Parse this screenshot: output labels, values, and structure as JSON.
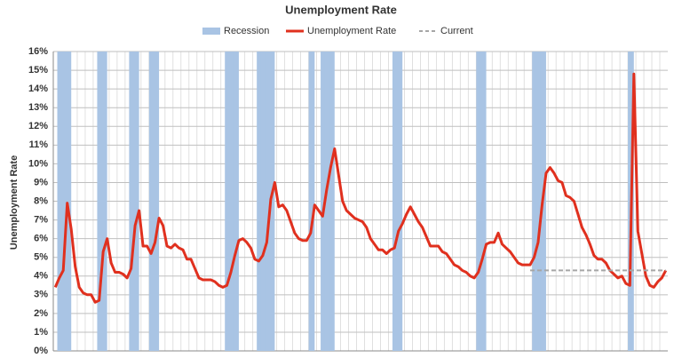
{
  "chart_data": {
    "type": "combo",
    "title": "Unemployment Rate",
    "y_label": "Unemployment Rate",
    "categories": [
      null,
      null,
      null,
      null,
      null,
      null,
      null,
      null,
      null,
      null,
      null,
      null,
      null,
      null,
      null,
      null,
      null,
      null,
      null,
      null,
      null,
      null,
      null,
      null,
      null,
      null,
      null,
      null,
      null,
      null,
      null,
      null,
      null,
      null,
      null,
      null,
      null,
      null,
      null,
      null,
      null,
      null,
      null,
      null,
      null,
      null,
      null,
      null,
      null,
      null,
      null,
      null,
      null,
      null,
      null,
      null,
      null,
      null,
      null,
      null,
      null,
      null,
      null,
      null,
      null,
      null,
      null,
      null,
      null,
      null,
      null,
      null,
      null,
      null,
      null,
      null,
      null,
      null,
      null,
      null,
      null,
      null,
      null,
      null,
      null,
      null,
      null,
      null,
      null,
      null,
      null,
      null,
      null,
      null,
      null,
      null,
      null,
      null,
      null,
      null,
      null,
      null,
      null,
      null,
      null,
      null,
      null,
      null,
      null,
      null,
      null,
      null,
      null,
      null,
      null,
      null,
      null,
      null,
      null,
      null,
      null,
      null,
      null,
      null,
      null,
      null,
      null,
      null,
      null,
      null,
      null,
      null,
      null,
      null,
      null,
      null,
      null,
      null,
      null,
      null,
      null,
      null,
      null,
      null,
      null,
      null,
      null,
      null,
      null,
      null,
      null,
      null,
      null,
      null
    ],
    "series": [
      {
        "name": "Recession",
        "type": "bar",
        "color": "#a9c4e4",
        "values": [
          null,
          16,
          16,
          16,
          null,
          null,
          null,
          null,
          null,
          null,
          null,
          16,
          16,
          null,
          null,
          null,
          null,
          null,
          null,
          16,
          16,
          null,
          null,
          null,
          16,
          16,
          null,
          null,
          null,
          null,
          null,
          null,
          null,
          null,
          null,
          null,
          null,
          null,
          null,
          null,
          null,
          null,
          null,
          16,
          16,
          16,
          null,
          null,
          null,
          null,
          null,
          16,
          16,
          16,
          16,
          null,
          null,
          null,
          null,
          null,
          null,
          null,
          null,
          null,
          16,
          null,
          null,
          16,
          16,
          16,
          null,
          null,
          null,
          null,
          null,
          null,
          null,
          null,
          null,
          null,
          null,
          null,
          null,
          null,
          null,
          16,
          16,
          null,
          null,
          null,
          null,
          null,
          null,
          null,
          null,
          null,
          null,
          null,
          null,
          null,
          null,
          null,
          null,
          null,
          null,
          null,
          16,
          16,
          null,
          null,
          null,
          null,
          null,
          null,
          null,
          null,
          null,
          null,
          null,
          null,
          16,
          16,
          16,
          null,
          null,
          null,
          null,
          null,
          null,
          null,
          null,
          null,
          null,
          null,
          null,
          null,
          null,
          null,
          null,
          null,
          null,
          null,
          null,
          null,
          16,
          null,
          null,
          null,
          null,
          null,
          null,
          null,
          null,
          null
        ]
      },
      {
        "name": "Unemployment Rate",
        "type": "line",
        "color": "#e0301e",
        "values": [
          3.4,
          3.9,
          4.3,
          7.9,
          6.5,
          4.5,
          3.4,
          3.1,
          3.0,
          3.0,
          2.6,
          2.7,
          5.3,
          6.0,
          4.7,
          4.2,
          4.2,
          4.1,
          3.9,
          4.4,
          6.7,
          7.5,
          5.6,
          5.6,
          5.2,
          5.8,
          7.1,
          6.7,
          5.6,
          5.5,
          5.7,
          5.5,
          5.4,
          4.9,
          4.9,
          4.4,
          3.9,
          3.8,
          3.8,
          3.8,
          3.7,
          3.5,
          3.4,
          3.5,
          4.2,
          5.1,
          5.9,
          6.0,
          5.8,
          5.5,
          4.9,
          4.8,
          5.1,
          5.8,
          8.1,
          9.0,
          7.7,
          7.8,
          7.5,
          6.9,
          6.3,
          6.0,
          5.9,
          5.9,
          6.3,
          7.8,
          7.5,
          7.2,
          8.6,
          9.8,
          10.8,
          9.4,
          8.0,
          7.5,
          7.3,
          7.1,
          7.0,
          6.9,
          6.6,
          6.0,
          5.7,
          5.4,
          5.4,
          5.2,
          5.4,
          5.5,
          6.4,
          6.8,
          7.3,
          7.7,
          7.3,
          6.9,
          6.6,
          6.1,
          5.6,
          5.6,
          5.6,
          5.3,
          5.2,
          4.9,
          4.6,
          4.5,
          4.3,
          4.2,
          4.0,
          3.9,
          4.2,
          4.9,
          5.7,
          5.8,
          5.8,
          6.3,
          5.7,
          5.5,
          5.3,
          5.0,
          4.7,
          4.6,
          4.6,
          4.6,
          5.0,
          5.8,
          7.8,
          9.5,
          9.8,
          9.5,
          9.1,
          9.0,
          8.3,
          8.2,
          8.0,
          7.3,
          6.6,
          6.2,
          5.7,
          5.1,
          4.9,
          4.9,
          4.7,
          4.3,
          4.1,
          3.9,
          4.0,
          3.6,
          3.5,
          14.8,
          6.4,
          5.2,
          4.0,
          3.5,
          3.4,
          3.7,
          3.9,
          4.3
        ]
      },
      {
        "name": "Current",
        "type": "line",
        "style": "dashed",
        "color": "#a6a6a6",
        "values": [
          null,
          null,
          null,
          null,
          null,
          null,
          null,
          null,
          null,
          null,
          null,
          null,
          null,
          null,
          null,
          null,
          null,
          null,
          null,
          null,
          null,
          null,
          null,
          null,
          null,
          null,
          null,
          null,
          null,
          null,
          null,
          null,
          null,
          null,
          null,
          null,
          null,
          null,
          null,
          null,
          null,
          null,
          null,
          null,
          null,
          null,
          null,
          null,
          null,
          null,
          null,
          null,
          null,
          null,
          null,
          null,
          null,
          null,
          null,
          null,
          null,
          null,
          null,
          null,
          null,
          null,
          null,
          null,
          null,
          null,
          null,
          null,
          null,
          null,
          null,
          null,
          null,
          null,
          null,
          null,
          null,
          null,
          null,
          null,
          null,
          null,
          null,
          null,
          null,
          null,
          null,
          null,
          null,
          null,
          null,
          null,
          null,
          null,
          null,
          null,
          null,
          null,
          null,
          null,
          null,
          null,
          null,
          null,
          null,
          null,
          null,
          null,
          null,
          null,
          null,
          null,
          null,
          null,
          null,
          4.3,
          4.3,
          4.3,
          4.3,
          4.3,
          4.3,
          4.3,
          4.3,
          4.3,
          4.3,
          4.3,
          4.3,
          4.3,
          4.3,
          4.3,
          4.3,
          4.3,
          4.3,
          4.3,
          4.3,
          4.3,
          4.3,
          4.3,
          4.3,
          4.3,
          4.3,
          4.3,
          4.3,
          4.3,
          4.3,
          4.3,
          4.3,
          4.3,
          4.3,
          4.3
        ]
      }
    ],
    "ylim": [
      0,
      16
    ],
    "yticks": [
      {
        "value": 0,
        "label": "0%"
      },
      {
        "value": 1,
        "label": "1%"
      },
      {
        "value": 2,
        "label": "2%"
      },
      {
        "value": 3,
        "label": "3%"
      },
      {
        "value": 4,
        "label": "4%"
      },
      {
        "value": 5,
        "label": "5%"
      },
      {
        "value": 6,
        "label": "6%"
      },
      {
        "value": 7,
        "label": "7%"
      },
      {
        "value": 8,
        "label": "8%"
      },
      {
        "value": 9,
        "label": "9%"
      },
      {
        "value": 10,
        "label": "10%"
      },
      {
        "value": 11,
        "label": "11%"
      },
      {
        "value": 12,
        "label": "12%"
      },
      {
        "value": 13,
        "label": "13%"
      },
      {
        "value": 14,
        "label": "14%"
      },
      {
        "value": 15,
        "label": "15%"
      },
      {
        "value": 16,
        "label": "16%"
      }
    ],
    "grid": true,
    "legend": "top"
  }
}
